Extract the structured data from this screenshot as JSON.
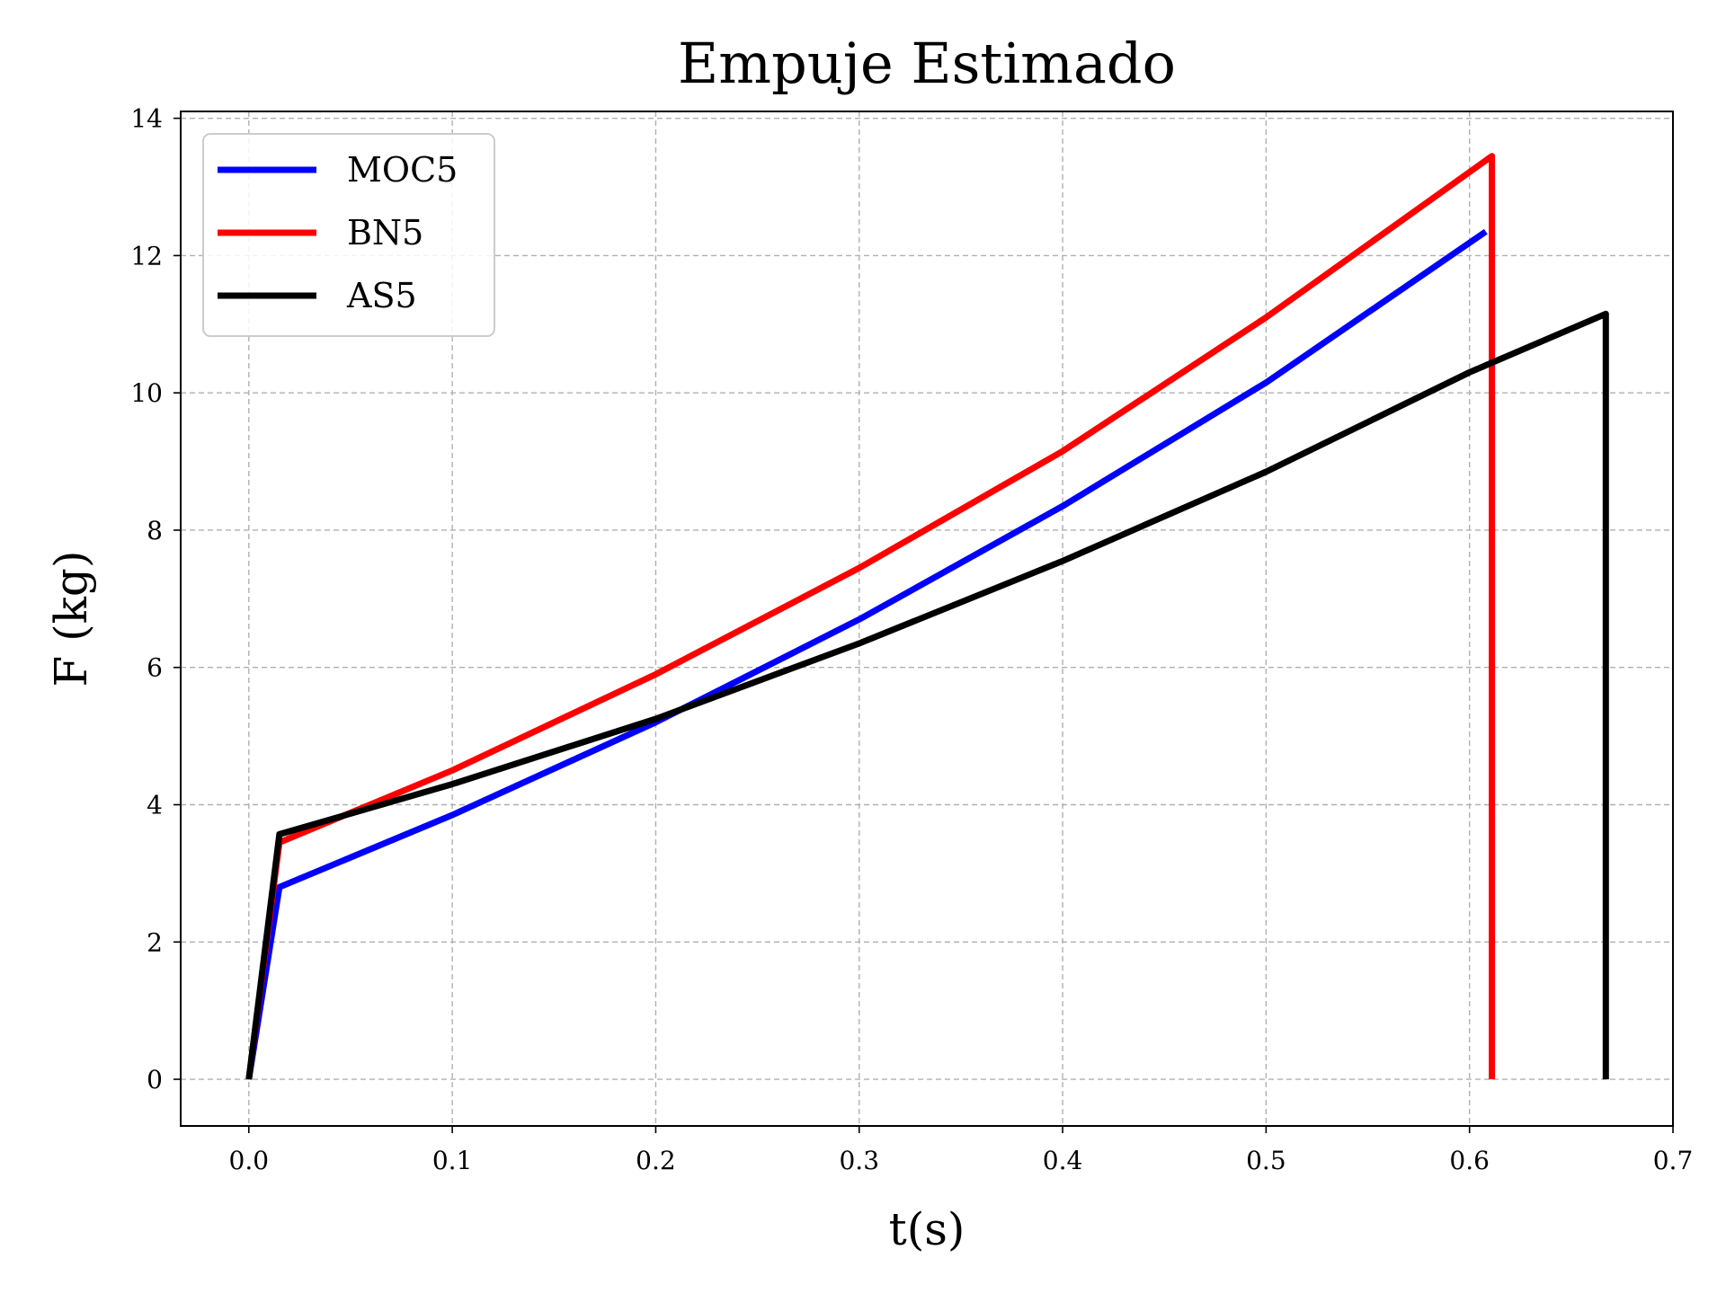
{
  "chart_data": {
    "type": "line",
    "title": "Empuje Estimado",
    "xlabel": "t(s)",
    "ylabel": "F (kg)",
    "xlim": [
      -0.0335,
      0.7
    ],
    "ylim": [
      -0.68,
      14.1
    ],
    "xticks": [
      "0.0",
      "0.1",
      "0.2",
      "0.3",
      "0.4",
      "0.5",
      "0.6",
      "0.7"
    ],
    "yticks": [
      "0",
      "2",
      "4",
      "6",
      "8",
      "10",
      "12",
      "14"
    ],
    "grid": true,
    "legend_position": "top-left",
    "series": [
      {
        "name": "MOC5",
        "color": "#0000ff",
        "points": [
          [
            0.0,
            0.0
          ],
          [
            0.015,
            2.8
          ],
          [
            0.1,
            3.85
          ],
          [
            0.2,
            5.2
          ],
          [
            0.3,
            6.7
          ],
          [
            0.4,
            8.35
          ],
          [
            0.5,
            10.15
          ],
          [
            0.608,
            12.35
          ]
        ]
      },
      {
        "name": "BN5",
        "color": "#ff0000",
        "points": [
          [
            0.0,
            0.0
          ],
          [
            0.015,
            3.45
          ],
          [
            0.1,
            4.5
          ],
          [
            0.2,
            5.9
          ],
          [
            0.3,
            7.45
          ],
          [
            0.4,
            9.15
          ],
          [
            0.5,
            11.1
          ],
          [
            0.611,
            13.45
          ],
          [
            0.611,
            0.0
          ]
        ]
      },
      {
        "name": "AS5",
        "color": "#000000",
        "points": [
          [
            0.0,
            0.0
          ],
          [
            0.015,
            3.57
          ],
          [
            0.1,
            4.3
          ],
          [
            0.2,
            5.25
          ],
          [
            0.3,
            6.35
          ],
          [
            0.4,
            7.55
          ],
          [
            0.5,
            8.85
          ],
          [
            0.6,
            10.3
          ],
          [
            0.667,
            11.15
          ],
          [
            0.667,
            0.0
          ]
        ]
      }
    ]
  }
}
